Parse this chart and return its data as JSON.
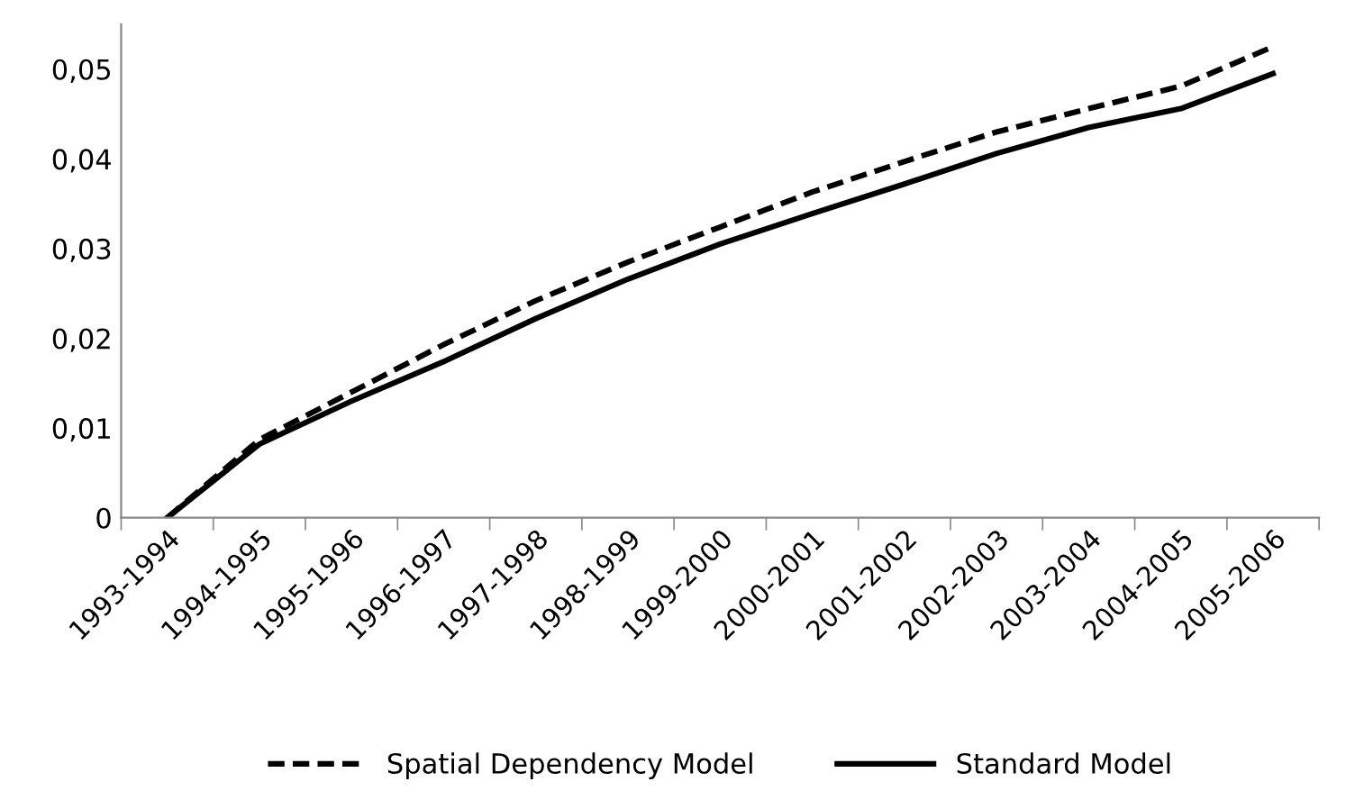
{
  "chart_data": {
    "type": "line",
    "categories": [
      "1993-1994",
      "1994-1995",
      "1995-1996",
      "1996-1997",
      "1997-1998",
      "1998-1999",
      "1999-2000",
      "2000-2001",
      "2001-2002",
      "2002-2003",
      "2003-2004",
      "2004-2005",
      "2005-2006"
    ],
    "series": [
      {
        "name": "Spatial Dependency Model",
        "color": "#000000",
        "line_style": "dashed",
        "values": [
          0,
          0.0087,
          0.014,
          0.0193,
          0.0242,
          0.0285,
          0.0324,
          0.0363,
          0.0397,
          0.043,
          0.0456,
          0.0481,
          0.0525
        ]
      },
      {
        "name": "Standard Model",
        "color": "#000000",
        "line_style": "solid",
        "values": [
          0,
          0.0082,
          0.013,
          0.0174,
          0.0222,
          0.0266,
          0.0305,
          0.0339,
          0.0372,
          0.0406,
          0.0435,
          0.0456,
          0.0495
        ]
      }
    ],
    "ylim": [
      0,
      0.055
    ],
    "yticks": [
      {
        "value": 0,
        "label": "0"
      },
      {
        "value": 0.01,
        "label": "0,01"
      },
      {
        "value": 0.02,
        "label": "0,02"
      },
      {
        "value": 0.03,
        "label": "0,03"
      },
      {
        "value": 0.04,
        "label": "0,04"
      },
      {
        "value": 0.05,
        "label": "0,05"
      }
    ],
    "grid": false,
    "legend": "bottom",
    "marker": "none"
  }
}
